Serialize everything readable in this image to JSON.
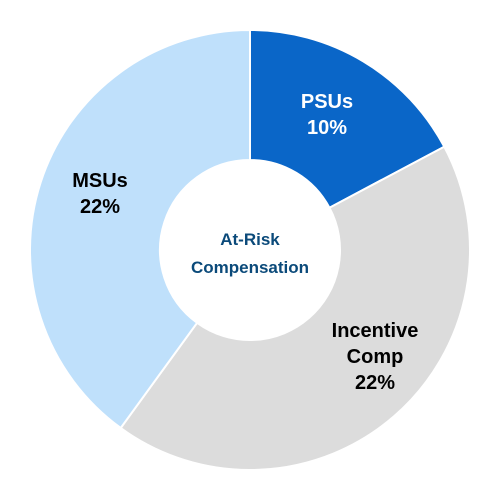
{
  "chart_data": {
    "type": "pie",
    "variant": "donut",
    "center_text": [
      "At-Risk",
      "Compensation"
    ],
    "slices": [
      {
        "label": "PSUs",
        "pct_label": "10%",
        "value": 10,
        "color": "#0a66c8",
        "text_color": "#ffffff"
      },
      {
        "label": "Incentive Comp",
        "label_lines": [
          "Incentive",
          "Comp"
        ],
        "pct_label": "22%",
        "value": 22,
        "color": "#dcdcdc",
        "text_color": "#000000"
      },
      {
        "label": "MSUs",
        "pct_label": "22%",
        "value": 22,
        "color": "#bfe0fb",
        "text_color": "#000000"
      }
    ],
    "center_text_color": "#0b4a7a"
  }
}
